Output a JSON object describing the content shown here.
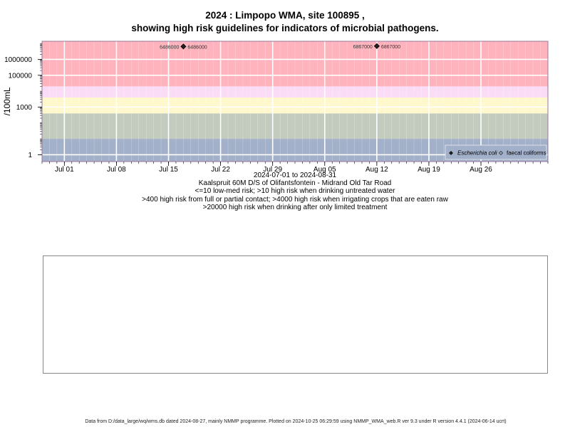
{
  "title_line1": "2024 : Limpopo WMA, site 100895 ,",
  "title_line2": "showing high risk guidelines for indicators of microbial pathogens.",
  "caption": {
    "date_range": "2024-07-01 to 2024-08-31",
    "site": "Kaalspruit 60M D/S of Olifantsfontein - Midrand Old Tar Road",
    "rule1": "<=10 low-med risk; >10 high risk when drinking untreated water",
    "rule2": ">400 high risk from full or partial contact; >4000 high risk when irrigating crops that are eaten raw",
    "rule3": ">20000 high risk when drinking after only limited treatment"
  },
  "footer": "Data from D:/data_large/wq/wms.db dated 2024-08-27, mainly NMMP programme. Plotted on 2024-10-25 06:29:59 using NMMP_WMA_web.R ver 9.3 under R version 4.4.1 (2024-06-14 ucrt)",
  "colors": {
    "band_low": "#a3b0c9",
    "band_lowmed": "#c3cbbe",
    "band_contact": "#fff8cc",
    "band_irrigation": "#fadcf6",
    "band_high": "#ffb3bd",
    "grid": "#ffffff",
    "point": "#222222"
  },
  "chart_data": {
    "type": "scatter",
    "title": "2024 : Limpopo WMA, site 100895 ,\nshowing high risk guidelines for indicators of microbial pathogens.",
    "xlabel": "2024-07-01 to 2024-08-31",
    "ylabel": "/100mL",
    "y_scale": "log",
    "xlim": [
      "2024-06-28",
      "2024-09-04"
    ],
    "ylim_log10": [
      -0.43,
      7.14
    ],
    "x_ticks": [
      "Jul 01",
      "Jul 08",
      "Jul 15",
      "Jul 22",
      "Jul 29",
      "Aug 05",
      "Aug 12",
      "Aug 19",
      "Aug 26"
    ],
    "x_tick_dates": [
      "2024-07-01",
      "2024-07-08",
      "2024-07-15",
      "2024-07-22",
      "2024-07-29",
      "2024-08-05",
      "2024-08-12",
      "2024-08-19",
      "2024-08-26"
    ],
    "y_ticks": [
      1,
      1000,
      100000,
      1000000
    ],
    "y_tick_labels": [
      "1",
      "1000",
      "100000",
      "1000000"
    ],
    "bands": [
      {
        "from": 0.3,
        "to": 10
      },
      {
        "from": 10,
        "to": 400
      },
      {
        "from": 400,
        "to": 4000
      },
      {
        "from": 4000,
        "to": 20000
      },
      {
        "from": 20000,
        "to": 14000000
      }
    ],
    "legend_placement": "bottom-right",
    "series": [
      {
        "name": "Escherichia coli",
        "marker": "filled-diamond",
        "points": [
          {
            "x": "2024-07-17",
            "y": 6486000,
            "label": "6486000"
          },
          {
            "x": "2024-08-12",
            "y": 6867000,
            "label": "6867000"
          }
        ]
      },
      {
        "name": "faecal coliforms",
        "marker": "open-diamond",
        "points": []
      }
    ],
    "grid": true
  }
}
